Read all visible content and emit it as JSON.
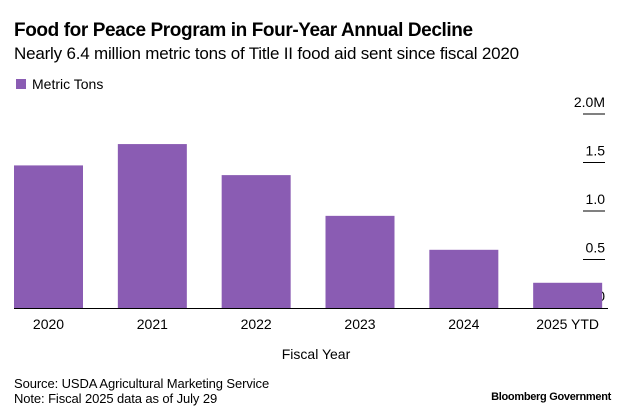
{
  "header": {
    "title": "Food for Peace Program in Four-Year Annual Decline",
    "subtitle": "Nearly 6.4 million metric tons of Title II food aid sent since fiscal 2020"
  },
  "footer": {
    "source": "Source: USDA Agricultural Marketing Service",
    "note": "Note: Fiscal 2025 data as of July 29",
    "brand": "Bloomberg Government"
  },
  "chart_data": {
    "type": "bar",
    "title": "Food for Peace Program in Four-Year Annual Decline",
    "subtitle": "Nearly 6.4 million metric tons of Title II food aid sent since fiscal 2020",
    "xlabel": "Fiscal Year",
    "ylabel": "",
    "categories": [
      "2020",
      "2021",
      "2022",
      "2023",
      "2024",
      "2025 YTD"
    ],
    "series": [
      {
        "name": "Metric Tons",
        "color": "#8a5cb3",
        "values": [
          1470000,
          1690000,
          1370000,
          950000,
          600000,
          260000
        ]
      }
    ],
    "ylim": [
      0,
      2000000
    ],
    "yticks": [
      0,
      500000,
      1000000,
      1500000,
      2000000
    ],
    "ytick_labels": [
      "0",
      "0.5",
      "1.0",
      "1.5",
      "2.0M"
    ],
    "yaxis_position": "right",
    "legend": {
      "entries": [
        "Metric Tons"
      ],
      "placement": "top-left"
    },
    "grid": false
  }
}
